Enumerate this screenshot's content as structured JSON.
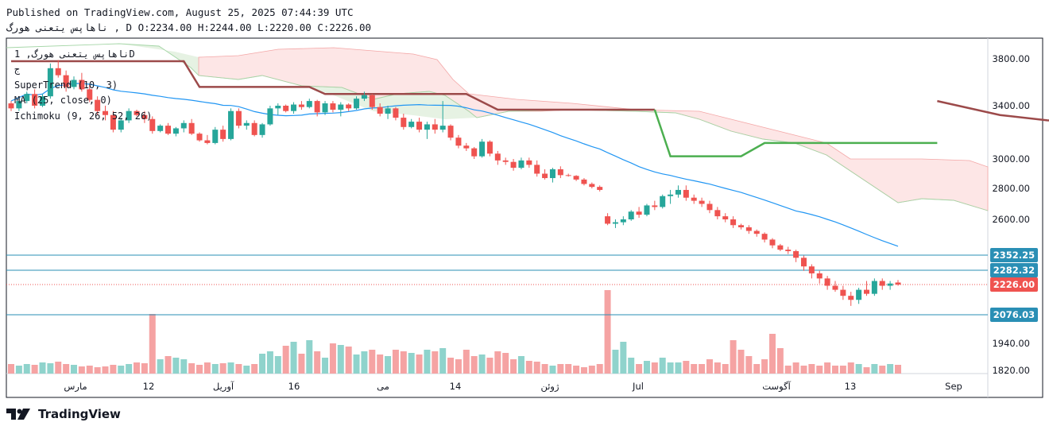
{
  "header": {
    "published": "Published on TradingView.com, August 25, 2025 07:44:39 UTC",
    "ohlc_line": "ناهاپس يتعنی هورگ , D O:2234.00 H:2244.00 L:2220.00 C:2226.00"
  },
  "legend": {
    "symbol": "ناهاپس يتعنی هورگ, 1D",
    "currency": "ج",
    "indicator_1": "SuperTrend (10, 3)",
    "indicator_2": "MA (25, close, 0)",
    "indicator_3": "Ichimoku (9, 26, 52, 26)"
  },
  "brand": {
    "name": "TradingView",
    "logo_icon": "tradingview-logo-icon"
  },
  "colors": {
    "up": "#26a69a",
    "down": "#ef5350",
    "vol_up": "#8fd3cc",
    "vol_down": "#f5a3a3",
    "supertrend_up": "#4caf50",
    "supertrend_down": "#9c4a4a",
    "ma": "#2196f3",
    "cloud_bull": "#e6f2e3",
    "cloud_bear": "#fde6e6",
    "hline": "#2a8fb5"
  },
  "chart_data": {
    "type": "candlestick",
    "y_axis_ticks": [
      "3800.00",
      "3400.00",
      "3000.00",
      "2800.00",
      "2600.00",
      "1940.00",
      "1820.00"
    ],
    "x_axis_ticks": [
      "مارس",
      "12",
      "آوریل",
      "16",
      "می",
      "14",
      "ژوئن",
      "Jul",
      "آگوست",
      "13",
      "Sep"
    ],
    "price_tags": [
      {
        "label": "2352.25",
        "value": 2352.25,
        "kind": "hline"
      },
      {
        "label": "2282.32",
        "value": 2282.32,
        "kind": "hline"
      },
      {
        "label": "2226.00",
        "value": 2226.0,
        "kind": "last"
      },
      {
        "label": "2076.03",
        "value": 2076.03,
        "kind": "hline"
      }
    ],
    "last_close": 2226,
    "ohlc": [
      [
        3420,
        3440,
        3360,
        3380
      ],
      [
        3380,
        3460,
        3360,
        3440
      ],
      [
        3440,
        3520,
        3420,
        3500
      ],
      [
        3500,
        3540,
        3380,
        3400
      ],
      [
        3400,
        3500,
        3390,
        3480
      ],
      [
        3480,
        3760,
        3460,
        3720
      ],
      [
        3720,
        3790,
        3640,
        3660
      ],
      [
        3660,
        3700,
        3520,
        3560
      ],
      [
        3560,
        3650,
        3540,
        3620
      ],
      [
        3620,
        3680,
        3520,
        3540
      ],
      [
        3540,
        3580,
        3430,
        3450
      ],
      [
        3450,
        3480,
        3330,
        3360
      ],
      [
        3360,
        3400,
        3290,
        3330
      ],
      [
        3330,
        3360,
        3200,
        3220
      ],
      [
        3220,
        3310,
        3200,
        3290
      ],
      [
        3290,
        3380,
        3270,
        3360
      ],
      [
        3360,
        3370,
        3320,
        3330
      ],
      [
        3330,
        3360,
        3270,
        3300
      ],
      [
        3300,
        3320,
        3190,
        3210
      ],
      [
        3210,
        3260,
        3200,
        3250
      ],
      [
        3250,
        3270,
        3180,
        3190
      ],
      [
        3190,
        3240,
        3170,
        3230
      ],
      [
        3230,
        3290,
        3200,
        3270
      ],
      [
        3270,
        3300,
        3180,
        3190
      ],
      [
        3190,
        3200,
        3130,
        3140
      ],
      [
        3140,
        3180,
        3110,
        3120
      ],
      [
        3120,
        3240,
        3110,
        3220
      ],
      [
        3220,
        3250,
        3130,
        3150
      ],
      [
        3150,
        3380,
        3140,
        3360
      ],
      [
        3360,
        3380,
        3230,
        3250
      ],
      [
        3250,
        3290,
        3220,
        3270
      ],
      [
        3270,
        3290,
        3170,
        3180
      ],
      [
        3180,
        3270,
        3160,
        3260
      ],
      [
        3260,
        3400,
        3250,
        3380
      ],
      [
        3380,
        3420,
        3330,
        3400
      ],
      [
        3400,
        3410,
        3350,
        3360
      ],
      [
        3360,
        3430,
        3340,
        3410
      ],
      [
        3410,
        3440,
        3370,
        3390
      ],
      [
        3390,
        3460,
        3380,
        3440
      ],
      [
        3440,
        3450,
        3320,
        3350
      ],
      [
        3350,
        3440,
        3330,
        3420
      ],
      [
        3420,
        3440,
        3350,
        3370
      ],
      [
        3370,
        3430,
        3320,
        3410
      ],
      [
        3410,
        3420,
        3360,
        3380
      ],
      [
        3380,
        3480,
        3370,
        3460
      ],
      [
        3460,
        3520,
        3440,
        3490
      ],
      [
        3490,
        3500,
        3370,
        3390
      ],
      [
        3390,
        3420,
        3320,
        3340
      ],
      [
        3340,
        3400,
        3300,
        3380
      ],
      [
        3380,
        3390,
        3290,
        3310
      ],
      [
        3310,
        3340,
        3220,
        3240
      ],
      [
        3240,
        3300,
        3230,
        3280
      ],
      [
        3280,
        3310,
        3200,
        3220
      ],
      [
        3220,
        3280,
        3150,
        3260
      ],
      [
        3260,
        3300,
        3190,
        3220
      ],
      [
        3220,
        3440,
        3200,
        3250
      ],
      [
        3250,
        3260,
        3140,
        3160
      ],
      [
        3160,
        3180,
        3080,
        3100
      ],
      [
        3100,
        3120,
        3060,
        3080
      ],
      [
        3080,
        3090,
        3000,
        3020
      ],
      [
        3020,
        3150,
        3010,
        3130
      ],
      [
        3130,
        3140,
        3020,
        3040
      ],
      [
        3040,
        3060,
        2960,
        2990
      ],
      [
        2990,
        3010,
        2960,
        2980
      ],
      [
        2980,
        3000,
        2920,
        2940
      ],
      [
        2940,
        3010,
        2930,
        2990
      ],
      [
        2990,
        3010,
        2940,
        2960
      ],
      [
        2960,
        2990,
        2880,
        2900
      ],
      [
        2900,
        2930,
        2860,
        2870
      ],
      [
        2870,
        2940,
        2840,
        2930
      ],
      [
        2930,
        2950,
        2870,
        2890
      ],
      [
        2890,
        2900,
        2880,
        2885
      ],
      [
        2885,
        2890,
        2850,
        2860
      ],
      [
        2860,
        2870,
        2820,
        2830
      ],
      [
        2830,
        2840,
        2800,
        2810
      ],
      [
        2810,
        2820,
        2780,
        2790
      ],
      [
        2620,
        2640,
        2560,
        2570
      ],
      [
        2570,
        2600,
        2540,
        2580
      ],
      [
        2580,
        2620,
        2560,
        2600
      ],
      [
        2600,
        2660,
        2590,
        2650
      ],
      [
        2650,
        2680,
        2610,
        2630
      ],
      [
        2630,
        2700,
        2620,
        2690
      ],
      [
        2690,
        2720,
        2660,
        2680
      ],
      [
        2680,
        2760,
        2670,
        2750
      ],
      [
        2750,
        2790,
        2700,
        2760
      ],
      [
        2760,
        2820,
        2740,
        2790
      ],
      [
        2790,
        2820,
        2720,
        2740
      ],
      [
        2740,
        2760,
        2700,
        2720
      ],
      [
        2720,
        2740,
        2680,
        2700
      ],
      [
        2700,
        2720,
        2640,
        2660
      ],
      [
        2660,
        2680,
        2600,
        2620
      ],
      [
        2620,
        2640,
        2580,
        2600
      ],
      [
        2600,
        2620,
        2540,
        2560
      ],
      [
        2560,
        2570,
        2530,
        2545
      ],
      [
        2545,
        2560,
        2500,
        2520
      ],
      [
        2520,
        2530,
        2480,
        2500
      ],
      [
        2500,
        2510,
        2440,
        2460
      ],
      [
        2460,
        2470,
        2400,
        2420
      ],
      [
        2420,
        2430,
        2380,
        2390
      ],
      [
        2390,
        2410,
        2360,
        2380
      ],
      [
        2380,
        2390,
        2320,
        2340
      ],
      [
        2340,
        2350,
        2280,
        2300
      ],
      [
        2300,
        2310,
        2250,
        2270
      ],
      [
        2270,
        2280,
        2230,
        2250
      ],
      [
        2250,
        2260,
        2200,
        2220
      ],
      [
        2220,
        2240,
        2190,
        2200
      ],
      [
        2200,
        2220,
        2150,
        2170
      ],
      [
        2170,
        2190,
        2120,
        2150
      ],
      [
        2150,
        2210,
        2130,
        2200
      ],
      [
        2200,
        2240,
        2170,
        2180
      ],
      [
        2180,
        2250,
        2170,
        2240
      ],
      [
        2240,
        2250,
        2200,
        2220
      ],
      [
        2220,
        2240,
        2200,
        2230
      ],
      [
        2234,
        2244,
        2220,
        2226
      ]
    ]
  }
}
